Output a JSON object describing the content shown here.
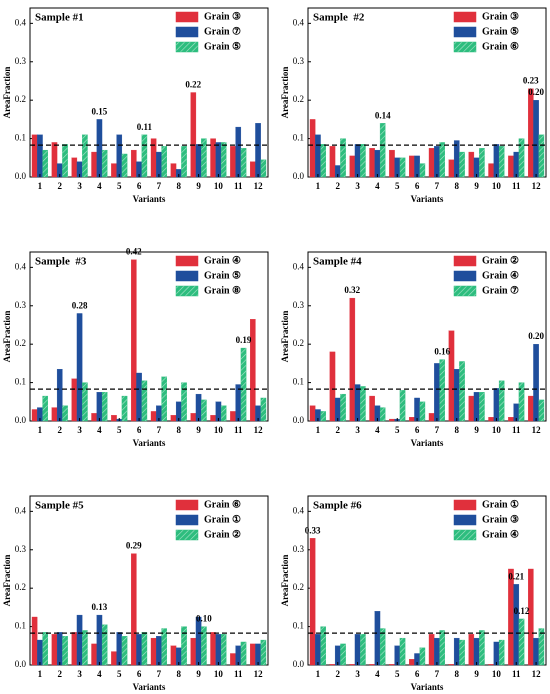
{
  "chart_data": [
    {
      "type": "bar",
      "title": "Sample #1",
      "xlabel": "Variants",
      "ylabel": "AreaFraction",
      "categories": [
        "1",
        "2",
        "3",
        "4",
        "5",
        "6",
        "7",
        "8",
        "9",
        "10",
        "11",
        "12"
      ],
      "ylim": [
        0,
        0.44
      ],
      "yticks": [
        {
          "value": 0,
          "label": "0.0"
        },
        0.1,
        0.2,
        0.3,
        0.4
      ],
      "hline": 0.083,
      "series": [
        {
          "name": "Grain ③",
          "color": "#e0303c",
          "values": [
            0.11,
            0.09,
            0.05,
            0.065,
            0.035,
            0.07,
            0.1,
            0.035,
            0.22,
            0.1,
            0.08,
            0.04
          ],
          "value_labels": [
            null,
            null,
            null,
            null,
            null,
            null,
            null,
            null,
            "0.22",
            null,
            null,
            null
          ]
        },
        {
          "name": "Grain ⑦",
          "color": "#1f4e9c",
          "values": [
            0.11,
            0.035,
            0.04,
            0.15,
            0.11,
            0.04,
            0.065,
            0.02,
            0.085,
            0.09,
            0.13,
            0.14
          ],
          "value_labels": [
            null,
            null,
            null,
            "0.15",
            null,
            null,
            null,
            null,
            null,
            null,
            null,
            null
          ]
        },
        {
          "name": "Grain ⑤",
          "color": "#2dbd7e",
          "hatch": true,
          "values": [
            0.07,
            0.085,
            0.11,
            0.07,
            0.06,
            0.11,
            0.08,
            0.08,
            0.1,
            0.09,
            0.075,
            0.045
          ],
          "value_labels": [
            null,
            null,
            null,
            null,
            null,
            "0.11",
            null,
            null,
            null,
            null,
            null,
            null
          ]
        }
      ]
    },
    {
      "type": "bar",
      "title": "Sample  #2",
      "xlabel": "Variants",
      "ylabel": "AreaFraction",
      "categories": [
        "1",
        "2",
        "3",
        "4",
        "5",
        "6",
        "7",
        "8",
        "9",
        "10",
        "11",
        "12"
      ],
      "ylim": [
        0,
        0.44
      ],
      "yticks": [
        {
          "value": 0,
          "label": "0.0"
        },
        0.1,
        0.2,
        0.3,
        0.4
      ],
      "hline": 0.083,
      "series": [
        {
          "name": "Grain ③",
          "color": "#e0303c",
          "values": [
            0.15,
            0.08,
            0.055,
            0.075,
            0.07,
            0.055,
            0.075,
            0.045,
            0.065,
            0.035,
            0.055,
            0.23
          ],
          "value_labels": [
            null,
            null,
            null,
            null,
            null,
            null,
            null,
            null,
            null,
            null,
            null,
            "0.23"
          ]
        },
        {
          "name": "Grain ⑤",
          "color": "#1f4e9c",
          "values": [
            0.11,
            0.03,
            0.085,
            0.07,
            0.05,
            0.055,
            0.08,
            0.095,
            0.05,
            0.085,
            0.065,
            0.2
          ],
          "value_labels": [
            null,
            null,
            null,
            null,
            null,
            null,
            null,
            null,
            null,
            null,
            null,
            "0.20"
          ]
        },
        {
          "name": "Grain ⑥",
          "color": "#2dbd7e",
          "hatch": true,
          "values": [
            0.085,
            0.1,
            0.085,
            0.14,
            0.05,
            0.035,
            0.09,
            0.065,
            0.075,
            0.08,
            0.1,
            0.11
          ],
          "value_labels": [
            null,
            null,
            null,
            "0.14",
            null,
            null,
            null,
            null,
            null,
            null,
            null,
            null
          ]
        }
      ]
    },
    {
      "type": "bar",
      "title": "Sample  #3",
      "xlabel": "Variants",
      "ylabel": "AreaFraction",
      "categories": [
        "1",
        "2",
        "3",
        "4",
        "5",
        "6",
        "7",
        "8",
        "9",
        "10",
        "11",
        "12"
      ],
      "ylim": [
        0,
        0.44
      ],
      "yticks": [
        {
          "value": 0,
          "label": "0.0"
        },
        0.1,
        0.2,
        0.3,
        0.4
      ],
      "hline": 0.083,
      "series": [
        {
          "name": "Grain ④",
          "color": "#e0303c",
          "values": [
            0.03,
            0.035,
            0.11,
            0.02,
            0.015,
            0.42,
            0.025,
            0.015,
            0.02,
            0.015,
            0.025,
            0.265
          ],
          "value_labels": [
            null,
            null,
            null,
            null,
            null,
            "0.42",
            null,
            null,
            null,
            null,
            null,
            null
          ]
        },
        {
          "name": "Grain ⑤",
          "color": "#1f4e9c",
          "values": [
            0.035,
            0.135,
            0.28,
            0.075,
            0.005,
            0.125,
            0.04,
            0.05,
            0.07,
            0.05,
            0.095,
            0.04
          ],
          "value_labels": [
            null,
            null,
            "0.28",
            null,
            null,
            null,
            null,
            null,
            null,
            null,
            null,
            null
          ]
        },
        {
          "name": "Grain ⑧",
          "color": "#2dbd7e",
          "hatch": true,
          "values": [
            0.065,
            0.04,
            0.1,
            0.075,
            0.065,
            0.105,
            0.115,
            0.1,
            0.055,
            0.04,
            0.19,
            0.06
          ],
          "value_labels": [
            null,
            null,
            null,
            null,
            null,
            null,
            null,
            null,
            null,
            null,
            "0.19",
            null
          ]
        }
      ]
    },
    {
      "type": "bar",
      "title": "Sample #4",
      "xlabel": "Variants",
      "ylabel": "AreaFraction",
      "categories": [
        "1",
        "2",
        "3",
        "4",
        "5",
        "6",
        "7",
        "8",
        "9",
        "10",
        "11",
        "12"
      ],
      "ylim": [
        0,
        0.44
      ],
      "yticks": [
        {
          "value": 0,
          "label": "0.0"
        },
        0.1,
        0.2,
        0.3,
        0.4
      ],
      "hline": 0.083,
      "series": [
        {
          "name": "Grain ②",
          "color": "#e0303c",
          "values": [
            0.04,
            0.18,
            0.32,
            0.065,
            0.005,
            0.01,
            0.02,
            0.235,
            0.065,
            0.01,
            0.01,
            0.065
          ],
          "value_labels": [
            null,
            null,
            "0.32",
            null,
            null,
            null,
            null,
            null,
            null,
            null,
            null,
            null
          ]
        },
        {
          "name": "Grain ④",
          "color": "#1f4e9c",
          "values": [
            0.03,
            0.06,
            0.095,
            0.04,
            0.005,
            0.06,
            0.15,
            0.135,
            0.075,
            0.085,
            0.045,
            0.2
          ],
          "value_labels": [
            null,
            null,
            null,
            null,
            null,
            null,
            null,
            null,
            null,
            null,
            null,
            "0.20"
          ]
        },
        {
          "name": "Grain ⑦",
          "color": "#2dbd7e",
          "hatch": true,
          "values": [
            0.025,
            0.07,
            0.09,
            0.035,
            0.08,
            0.05,
            0.16,
            0.155,
            0.075,
            0.105,
            0.1,
            0.055
          ],
          "value_labels": [
            null,
            null,
            null,
            null,
            null,
            null,
            "0.16",
            null,
            null,
            null,
            null,
            null
          ]
        }
      ]
    },
    {
      "type": "bar",
      "title": "Sample #5",
      "xlabel": "Variants",
      "ylabel": "AreaFraction",
      "categories": [
        "1",
        "2",
        "3",
        "4",
        "5",
        "6",
        "7",
        "8",
        "9",
        "10",
        "11",
        "12"
      ],
      "ylim": [
        0,
        0.44
      ],
      "yticks": [
        {
          "value": 0,
          "label": "0.0"
        },
        0.1,
        0.2,
        0.3,
        0.4
      ],
      "hline": 0.083,
      "series": [
        {
          "name": "Grain ⑥",
          "color": "#e0303c",
          "values": [
            0.125,
            0.08,
            0.085,
            0.055,
            0.035,
            0.29,
            0.07,
            0.05,
            0.07,
            0.085,
            0.03,
            0.055
          ],
          "value_labels": [
            null,
            null,
            null,
            null,
            null,
            "0.29",
            null,
            null,
            null,
            null,
            null,
            null
          ]
        },
        {
          "name": "Grain ①",
          "color": "#1f4e9c",
          "values": [
            0.065,
            0.085,
            0.13,
            0.13,
            0.085,
            0.08,
            0.075,
            0.045,
            0.125,
            0.08,
            0.05,
            0.055
          ],
          "value_labels": [
            null,
            null,
            null,
            "0.13",
            null,
            null,
            null,
            null,
            null,
            null,
            null,
            null
          ]
        },
        {
          "name": "Grain ②",
          "color": "#2dbd7e",
          "hatch": true,
          "values": [
            0.085,
            0.075,
            0.09,
            0.105,
            0.075,
            0.085,
            0.095,
            0.1,
            0.1,
            0.08,
            0.06,
            0.065
          ],
          "value_labels": [
            null,
            null,
            null,
            null,
            null,
            null,
            null,
            null,
            "0.10",
            null,
            null,
            null
          ]
        }
      ]
    },
    {
      "type": "bar",
      "title": "Sample #6",
      "xlabel": "Variants",
      "ylabel": "AreaFraction",
      "categories": [
        "1",
        "2",
        "3",
        "4",
        "5",
        "6",
        "7",
        "8",
        "9",
        "10",
        "11",
        "12"
      ],
      "ylim": [
        0,
        0.44
      ],
      "yticks": [
        {
          "value": 0,
          "label": "0.0"
        },
        0.1,
        0.2,
        0.3,
        0.4
      ],
      "hline": 0.083,
      "series": [
        {
          "name": "Grain ①",
          "color": "#e0303c",
          "values": [
            0.33,
            0.002,
            0.002,
            0.002,
            0.002,
            0.015,
            0.08,
            0.002,
            0.08,
            0.002,
            0.25,
            0.25
          ],
          "value_labels": [
            "0.33",
            null,
            null,
            null,
            null,
            null,
            null,
            null,
            null,
            null,
            null,
            null
          ]
        },
        {
          "name": "Grain ③",
          "color": "#1f4e9c",
          "values": [
            0.08,
            0.05,
            0.08,
            0.14,
            0.05,
            0.03,
            0.07,
            0.07,
            0.07,
            0.06,
            0.21,
            0.07
          ],
          "value_labels": [
            null,
            null,
            null,
            null,
            null,
            null,
            null,
            null,
            null,
            null,
            "0.21",
            null
          ]
        },
        {
          "name": "Grain ④",
          "color": "#2dbd7e",
          "hatch": true,
          "values": [
            0.1,
            0.055,
            0.08,
            0.095,
            0.07,
            0.045,
            0.09,
            0.065,
            0.09,
            0.065,
            0.12,
            0.095
          ],
          "value_labels": [
            null,
            null,
            null,
            null,
            null,
            null,
            null,
            null,
            null,
            null,
            "0.12",
            null
          ]
        }
      ]
    }
  ]
}
